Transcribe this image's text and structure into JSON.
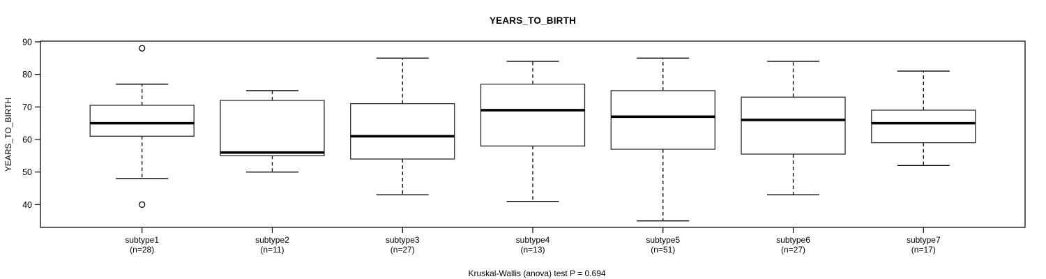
{
  "title": "YEARS_TO_BIRTH",
  "footer": "Kruskal-Wallis (anova) test P = 0.694",
  "colors": {
    "background": "#ffffff",
    "frame": "#3a3a3a",
    "box_border": "#2a2a2a",
    "box_fill": "#ffffff",
    "median": "#000000",
    "whisker": "#000000",
    "outlier": "#000000"
  },
  "chart_data": {
    "type": "boxplot",
    "title": "YEARS_TO_BIRTH",
    "xlabel": "",
    "ylabel": "YEARS_TO_BIRTH",
    "ylim": [
      33.0,
      90.2
    ],
    "yticks": [
      40,
      50,
      60,
      70,
      80,
      90
    ],
    "grid": false,
    "annotation": "Kruskal-Wallis (anova) test P = 0.694",
    "groups": [
      {
        "label": "subtype1",
        "sublabel": "(n=28)",
        "n": 28,
        "whisker_low": 48,
        "q1": 61,
        "median": 65,
        "q3": 70.5,
        "whisker_high": 77,
        "outliers": [
          88,
          40
        ]
      },
      {
        "label": "subtype2",
        "sublabel": "(n=11)",
        "n": 11,
        "whisker_low": 50,
        "q1": 55,
        "median": 56,
        "q3": 72,
        "whisker_high": 75,
        "outliers": []
      },
      {
        "label": "subtype3",
        "sublabel": "(n=27)",
        "n": 27,
        "whisker_low": 43,
        "q1": 54,
        "median": 61,
        "q3": 71,
        "whisker_high": 85,
        "outliers": []
      },
      {
        "label": "subtype4",
        "sublabel": "(n=13)",
        "n": 13,
        "whisker_low": 41,
        "q1": 58,
        "median": 69,
        "q3": 77,
        "whisker_high": 84,
        "outliers": []
      },
      {
        "label": "subtype5",
        "sublabel": "(n=51)",
        "n": 51,
        "whisker_low": 35,
        "q1": 57,
        "median": 67,
        "q3": 75,
        "whisker_high": 85,
        "outliers": []
      },
      {
        "label": "subtype6",
        "sublabel": "(n=27)",
        "n": 27,
        "whisker_low": 43,
        "q1": 55.5,
        "median": 66,
        "q3": 73,
        "whisker_high": 84,
        "outliers": []
      },
      {
        "label": "subtype7",
        "sublabel": "(n=17)",
        "n": 17,
        "whisker_low": 52,
        "q1": 59,
        "median": 65,
        "q3": 69,
        "whisker_high": 81,
        "outliers": []
      }
    ]
  }
}
